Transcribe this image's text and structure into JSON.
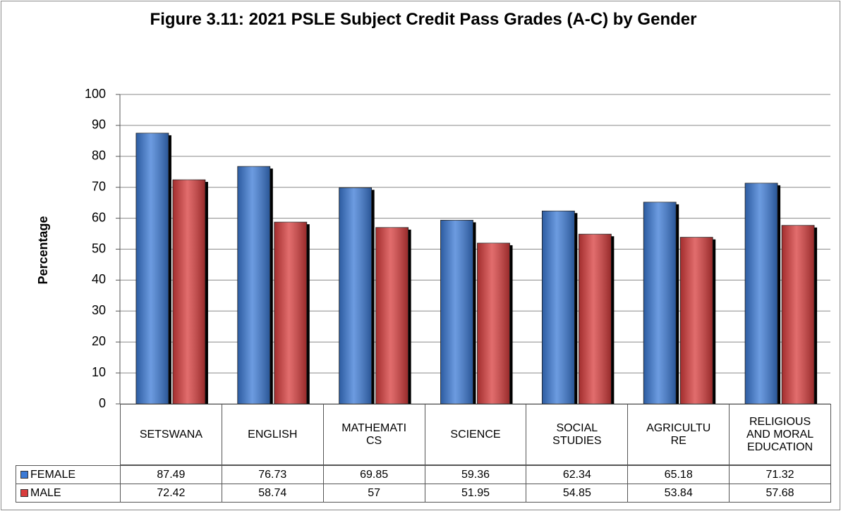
{
  "chart_data": {
    "type": "bar",
    "title": "Figure 3.11: 2021 PSLE Subject Credit Pass Grades (A-C) by Gender",
    "ylabel": "Percentage",
    "categories": [
      "SETSWANA",
      "ENGLISH",
      "MATHEMATI\nCS",
      "SCIENCE",
      "SOCIAL\nSTUDIES",
      "AGRICULTU\nRE",
      "RELIGIOUS\nAND MORAL\nEDUCATION"
    ],
    "series": [
      {
        "name": "FEMALE",
        "color": "#3b7ad6",
        "values": [
          87.49,
          76.73,
          69.85,
          59.36,
          62.34,
          65.18,
          71.32
        ]
      },
      {
        "name": "MALE",
        "color": "#d83c3c",
        "values": [
          72.42,
          58.74,
          57,
          51.95,
          54.85,
          53.84,
          57.68
        ]
      }
    ],
    "ylim": [
      0,
      100
    ],
    "yticks": [
      0,
      10,
      20,
      30,
      40,
      50,
      60,
      70,
      80,
      90,
      100
    ],
    "grid": true
  }
}
